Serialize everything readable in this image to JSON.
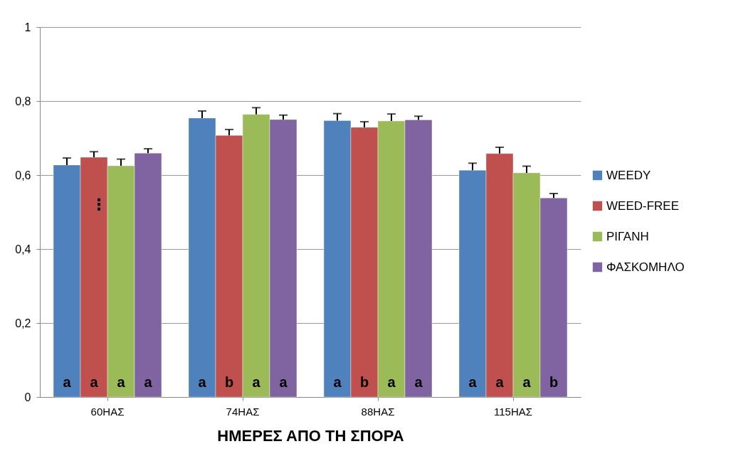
{
  "chart_data": {
    "type": "bar",
    "xlabel": "ΗΜΕΡΕΣ ΑΠΟ ΤΗ ΣΠΟΡΑ",
    "categories": [
      "60ΗΑΣ",
      "74ΗΑΣ",
      "88ΗΑΣ",
      "115ΗΑΣ"
    ],
    "series": [
      {
        "name": "WEEDY",
        "color": "#4f81bd",
        "values": [
          0.627,
          0.754,
          0.747,
          0.613
        ],
        "errors": [
          [
            0.627,
            0.646
          ],
          [
            0.754,
            0.773
          ],
          [
            0.747,
            0.766
          ],
          [
            0.613,
            0.632
          ]
        ],
        "value_labels": [
          "a",
          "a",
          "a",
          "a"
        ]
      },
      {
        "name": "WEED-FREE",
        "color": "#c0504d",
        "values": [
          0.648,
          0.707,
          0.729,
          0.658
        ],
        "errors": [
          [
            0.648,
            0.663
          ],
          [
            0.707,
            0.723
          ],
          [
            0.729,
            0.744
          ],
          [
            0.658,
            0.675
          ]
        ],
        "value_labels": [
          "a",
          "b",
          "b",
          "a"
        ]
      },
      {
        "name": "ΡΙΓΑΝΗ",
        "color": "#9bbb59",
        "values": [
          0.625,
          0.764,
          0.746,
          0.606
        ],
        "errors": [
          [
            0.625,
            0.643
          ],
          [
            0.764,
            0.782
          ],
          [
            0.746,
            0.765
          ],
          [
            0.606,
            0.624
          ]
        ],
        "value_labels": [
          "a",
          "a",
          "a",
          "a"
        ]
      },
      {
        "name": "ΦΑΣΚΟΜΗΛΟ",
        "color": "#8064a2",
        "values": [
          0.659,
          0.75,
          0.749,
          0.538
        ],
        "errors": [
          [
            0.659,
            0.671
          ],
          [
            0.75,
            0.762
          ],
          [
            0.749,
            0.759
          ],
          [
            0.538,
            0.55
          ]
        ],
        "value_labels": [
          "a",
          "a",
          "a",
          "b"
        ]
      }
    ],
    "annotations": [
      {
        "text": "⋮",
        "x": "60ΗΑΣ",
        "y": 0.52
      }
    ],
    "ylim": [
      0,
      1
    ],
    "yticks": [
      0,
      {
        "value": 0.2,
        "label": "0,2"
      },
      {
        "value": 0.4,
        "label": "0,4"
      },
      {
        "value": 0.6,
        "label": "0,6"
      },
      {
        "value": 0.8,
        "label": "0,8"
      },
      1
    ],
    "grid": "y",
    "legend": "right"
  }
}
